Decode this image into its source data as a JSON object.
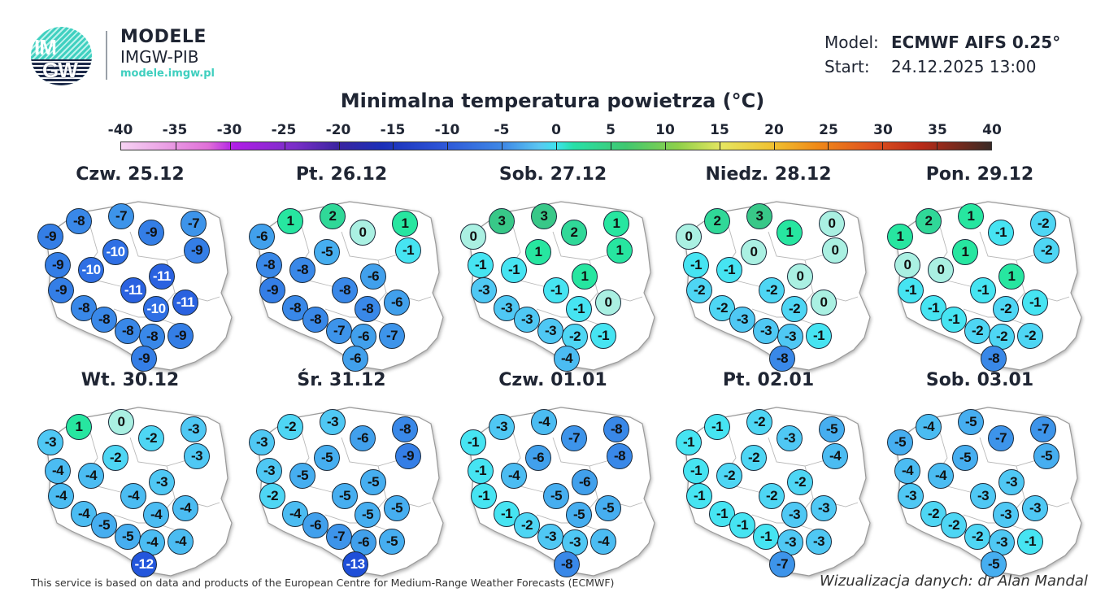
{
  "header": {
    "logo_text_top": "IM",
    "logo_text_bottom": "GW",
    "brand_title": "MODELE",
    "brand_subtitle": "IMGW-PIB",
    "brand_url": "modele.imgw.pl",
    "model_label": "Model:",
    "model_value": "ECMWF AIFS 0.25°",
    "start_label": "Start:",
    "start_value": "24.12.2025 13:00"
  },
  "title": "Minimalna temperatura powietrza (°C)",
  "colorbar": {
    "ticks": [
      "-40",
      "-35",
      "-30",
      "-25",
      "-20",
      "-15",
      "-10",
      "-5",
      "0",
      "5",
      "10",
      "15",
      "20",
      "25",
      "30",
      "35",
      "40"
    ]
  },
  "footer": {
    "attribution": "This service is based on data and products of the European Centre for Medium-Range Weather Forecasts (ECMWF)",
    "credit": "Wizualizacja danych: dr Alan Mandal"
  },
  "chart_data": {
    "type": "heatmap",
    "title": "Minimalna temperatura powietrza (°C)",
    "colorbar_range": [
      -40,
      40
    ],
    "station_positions_note": "20 stations per map, same order across days",
    "days": [
      {
        "label": "Czw. 25.12",
        "values": [
          -9,
          -8,
          -7,
          -9,
          -7,
          -9,
          -9,
          -10,
          -10,
          -11,
          -9,
          -11,
          -10,
          -11,
          -8,
          -8,
          -8,
          -8,
          -9,
          -9
        ]
      },
      {
        "label": "Pt. 26.12",
        "values": [
          -6,
          1,
          2,
          0,
          1,
          -1,
          -8,
          -5,
          -8,
          -6,
          -9,
          -8,
          -8,
          -6,
          -8,
          -8,
          -7,
          -6,
          -7,
          -6
        ]
      },
      {
        "label": "Sob. 27.12",
        "values": [
          0,
          3,
          3,
          2,
          1,
          1,
          -1,
          1,
          -1,
          1,
          -3,
          -1,
          -1,
          0,
          -3,
          -3,
          -3,
          -2,
          -1,
          -4
        ]
      },
      {
        "label": "Niedz. 28.12",
        "values": [
          0,
          2,
          3,
          1,
          0,
          0,
          -1,
          0,
          -1,
          0,
          -2,
          -2,
          -2,
          0,
          -2,
          -3,
          -3,
          -3,
          -1,
          -8
        ]
      },
      {
        "label": "Pon. 29.12",
        "values": [
          1,
          2,
          1,
          -1,
          -2,
          -2,
          0,
          1,
          0,
          1,
          -1,
          -1,
          -2,
          -1,
          -1,
          -1,
          -2,
          -2,
          -2,
          -8
        ]
      },
      {
        "label": "Wt. 30.12",
        "values": [
          -3,
          1,
          0,
          -2,
          -3,
          -3,
          -4,
          -2,
          -4,
          -3,
          -4,
          -4,
          -4,
          -4,
          -4,
          -5,
          -5,
          -4,
          -4,
          -12
        ]
      },
      {
        "label": "Śr. 31.12",
        "values": [
          -3,
          -2,
          -3,
          -6,
          -8,
          -9,
          -3,
          -5,
          -5,
          -5,
          -2,
          -5,
          -5,
          -5,
          -4,
          -6,
          -7,
          -6,
          -5,
          -13
        ]
      },
      {
        "label": "Czw. 01.01",
        "values": [
          -1,
          -3,
          -4,
          -7,
          -8,
          -8,
          -1,
          -6,
          -4,
          -6,
          -1,
          -5,
          -5,
          -5,
          -1,
          -2,
          -3,
          -3,
          -4,
          -8
        ]
      },
      {
        "label": "Pt. 02.01",
        "values": [
          -1,
          -1,
          -2,
          -3,
          -5,
          -4,
          -1,
          -2,
          -2,
          -2,
          -1,
          -2,
          -3,
          -3,
          -1,
          -1,
          -1,
          -3,
          -3,
          -7
        ]
      },
      {
        "label": "Sob. 03.01",
        "values": [
          -5,
          -4,
          -5,
          -7,
          -7,
          -5,
          -4,
          -5,
          -4,
          -3,
          -3,
          -3,
          -3,
          -3,
          -2,
          -2,
          -2,
          -3,
          -1,
          -5
        ]
      }
    ]
  }
}
